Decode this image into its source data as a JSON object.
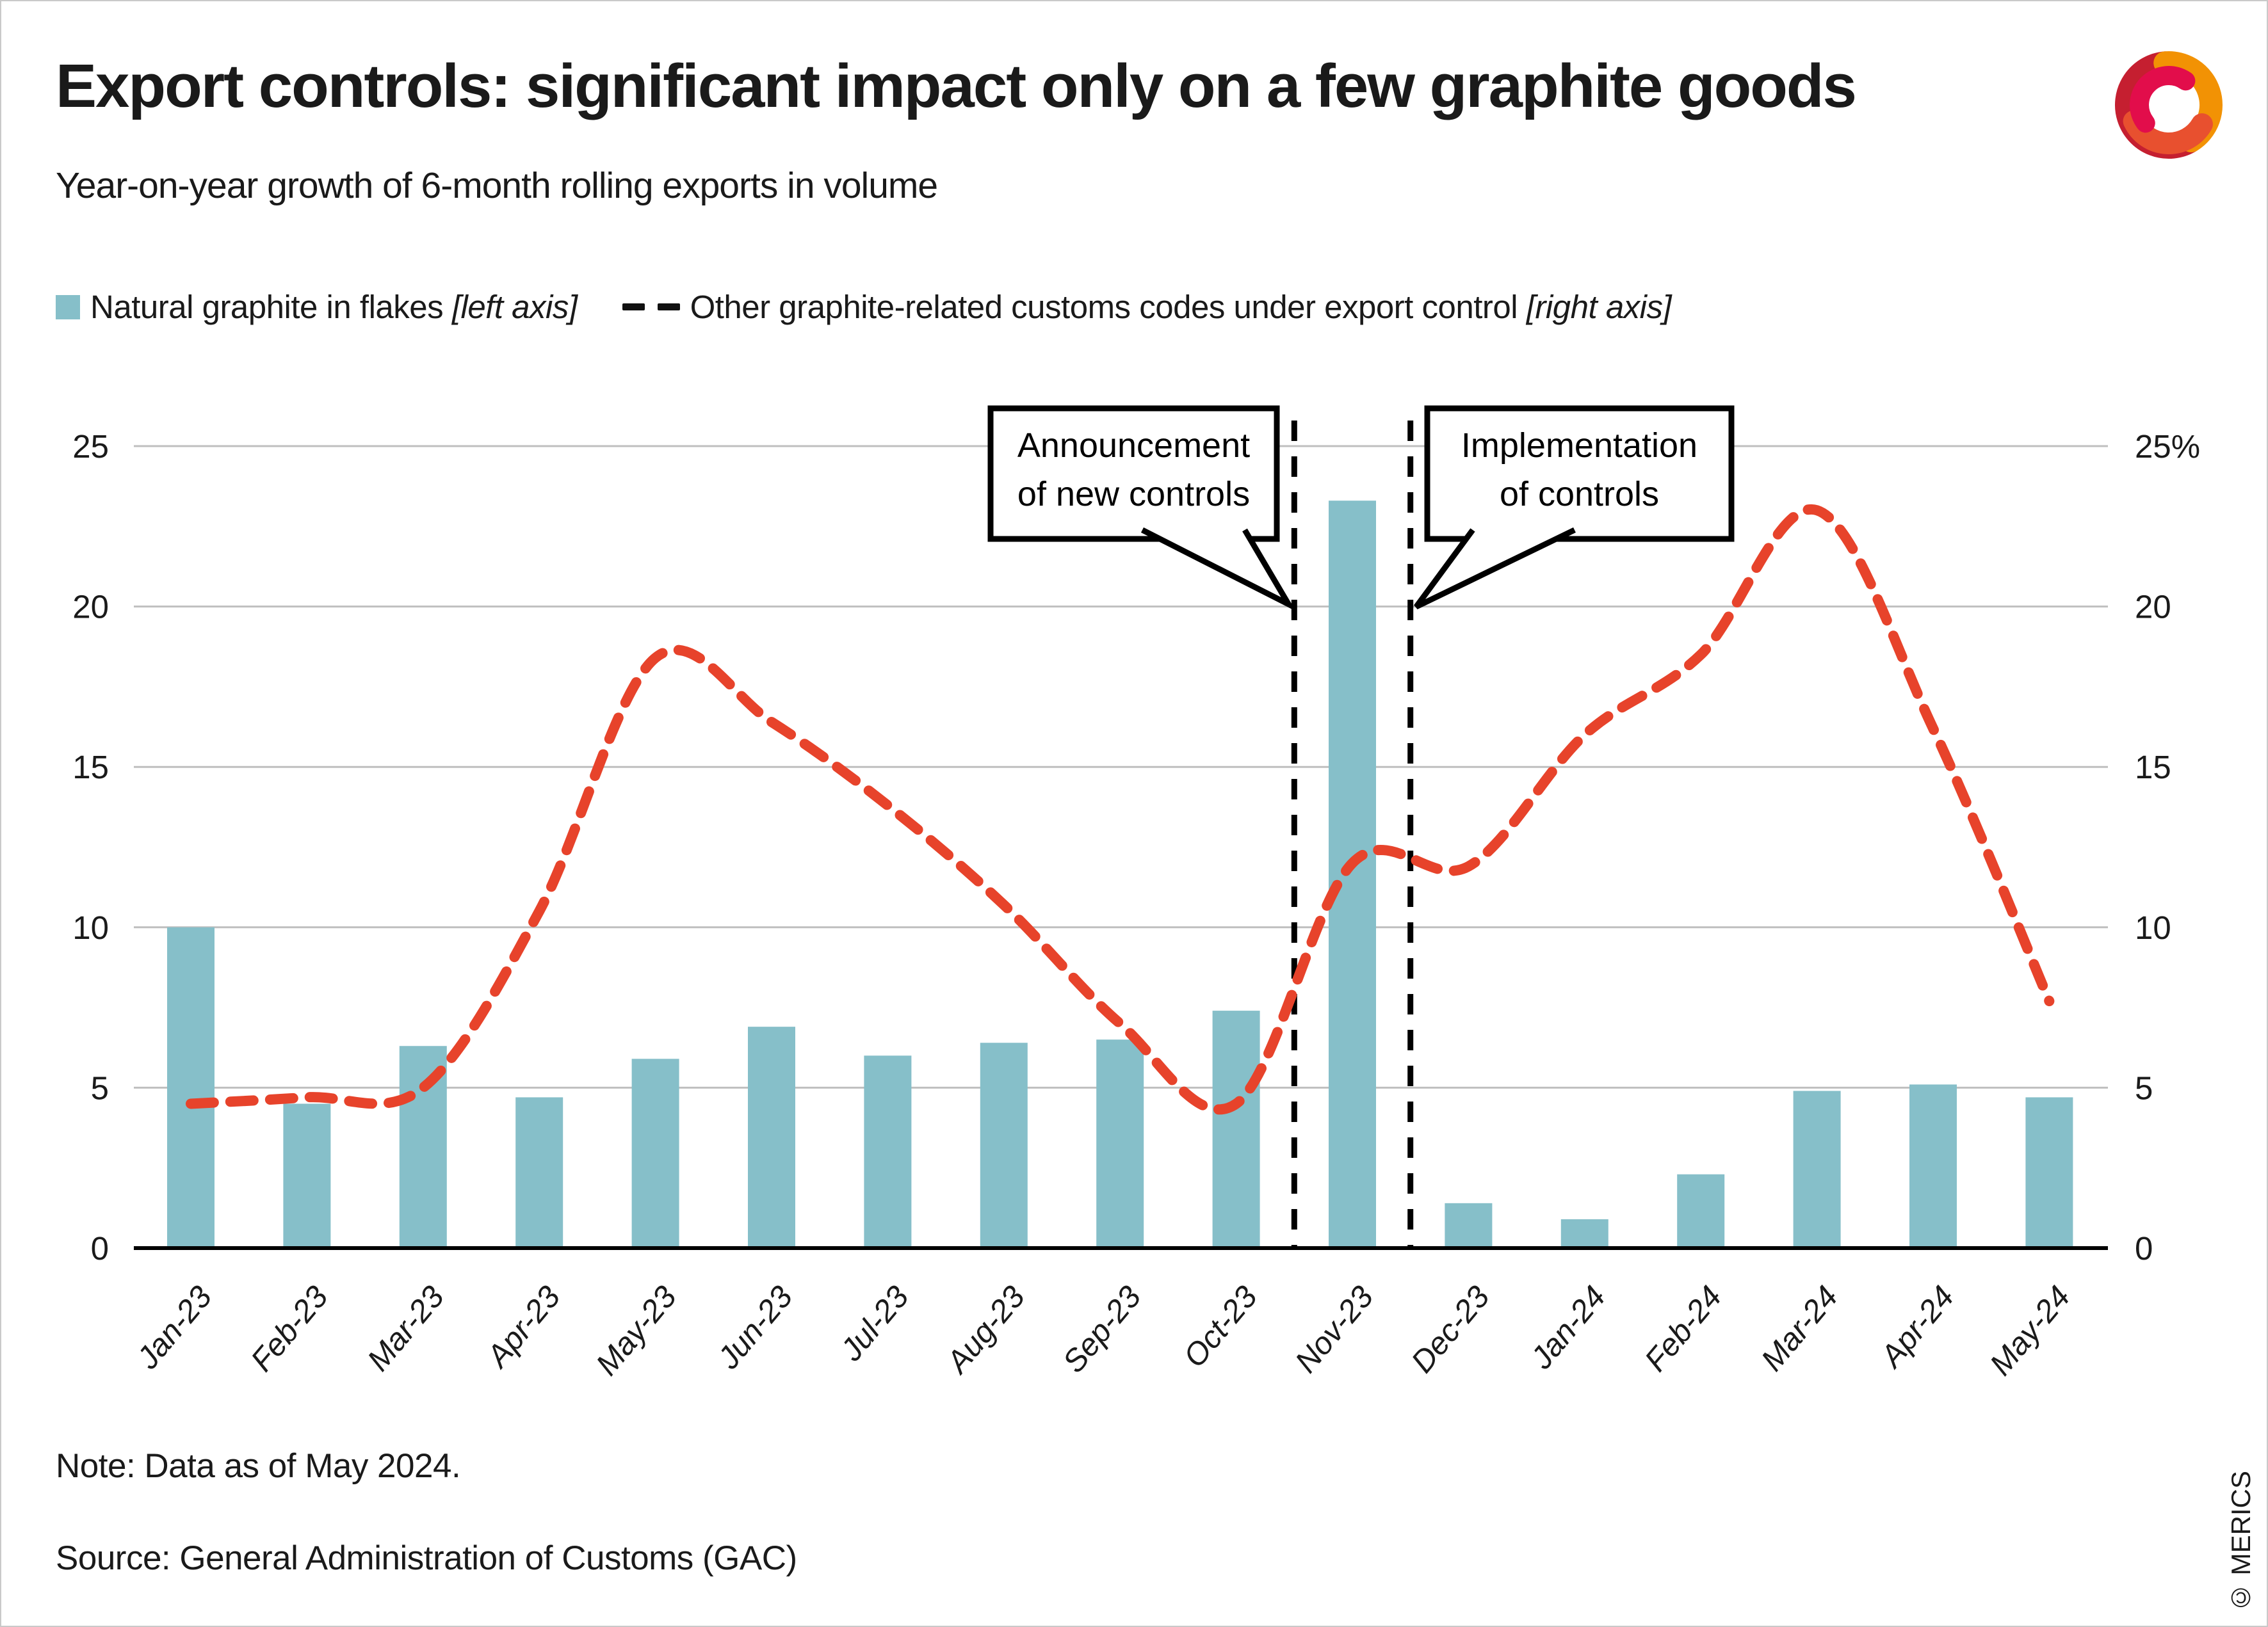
{
  "header": {
    "title": "Export controls: significant impact only on a few graphite goods",
    "subtitle": "Year-on-year growth of 6-month rolling exports in volume"
  },
  "legend": {
    "bar_label": "Natural graphite in flakes",
    "bar_suffix": "[left axis]",
    "line_label": "Other graphite-related customs codes under export control",
    "line_suffix": "[right axis]"
  },
  "footer": {
    "note": "Note: Data as of May 2024.",
    "source": "Source: General Administration of Customs (GAC)",
    "copyright": "© MERICS"
  },
  "colors": {
    "bar": "#86BFC9",
    "line": "#E7432B",
    "grid": "#BFBFBF",
    "axis": "#000000",
    "text": "#1a1a1a",
    "annotation_border": "#000000",
    "logo_red": "#C51F30",
    "logo_orange": "#F29204",
    "logo_magenta": "#E20D4B",
    "logo_vermilion": "#E8502F"
  },
  "chart_data": {
    "type": "bar",
    "title": "Export controls: significant impact only on a few graphite goods",
    "subtitle": "Year-on-year growth of 6-month rolling exports in volume",
    "categories": [
      "Jan-23",
      "Feb-23",
      "Mar-23",
      "Apr-23",
      "May-23",
      "Jun-23",
      "Jul-23",
      "Aug-23",
      "Sep-23",
      "Oct-23",
      "Nov-23",
      "Dec-23",
      "Jan-24",
      "Feb-24",
      "Mar-24",
      "Apr-24",
      "May-24"
    ],
    "series": [
      {
        "name": "Natural graphite in flakes",
        "type": "bar",
        "axis": "left",
        "values": [
          10.0,
          4.5,
          6.3,
          4.7,
          5.9,
          6.9,
          6.0,
          6.4,
          6.5,
          7.4,
          23.3,
          1.4,
          0.9,
          2.3,
          4.9,
          5.1,
          4.7
        ]
      },
      {
        "name": "Other graphite-related customs codes under export control",
        "type": "line",
        "style": "dashed",
        "axis": "right",
        "values": [
          4.5,
          4.7,
          5.0,
          10.5,
          18.4,
          16.4,
          13.8,
          10.7,
          7.0,
          4.5,
          12.0,
          11.9,
          16.0,
          18.5,
          23.0,
          16.2,
          7.7
        ]
      }
    ],
    "left_axis": {
      "ticks": [
        "0",
        "5",
        "10",
        "15",
        "20",
        "25"
      ],
      "range": [
        0,
        25
      ]
    },
    "right_axis": {
      "ticks": [
        "0",
        "5",
        "10",
        "15",
        "20",
        "25%"
      ],
      "range": [
        0,
        25
      ]
    },
    "grid": "horizontal",
    "annotations": [
      {
        "line1": "Announcement",
        "line2": "of new controls",
        "between": [
          "Oct-23",
          "Nov-23"
        ]
      },
      {
        "line1": "Implementation",
        "line2": "of controls",
        "between": [
          "Nov-23",
          "Dec-23"
        ]
      }
    ]
  }
}
